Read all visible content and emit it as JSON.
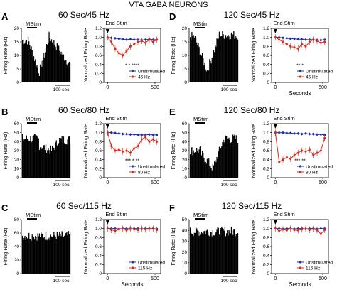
{
  "main_title": "VTA GABA NEURONS",
  "colors": {
    "unstimulated": "#1f2fa8",
    "stimulated": "#d42a1c",
    "hist": "#000000"
  },
  "panels": [
    {
      "letter": "A",
      "title": "60 Sec/45 Hz",
      "mstim": "MStim",
      "hist_ylabel": "Firing Rate (Hz)",
      "hist_yticks": [
        "20",
        "15",
        "10",
        "5",
        "0"
      ],
      "hist_ymax": 20,
      "scalebar": "100 sec"
    },
    {
      "letter": "B",
      "title": "60 Sec/80 Hz",
      "mstim": "MStim",
      "hist_ylabel": "Firing Rate (Hz)",
      "hist_yticks": [
        "60",
        "50",
        "40",
        "30",
        "20",
        "10",
        "0"
      ],
      "hist_ymax": 60,
      "scalebar": "100 sec"
    },
    {
      "letter": "C",
      "title": "60 Sec/115 Hz",
      "mstim": "MStim",
      "hist_ylabel": "Firing Rate (Hz)",
      "hist_yticks": [
        "80",
        "60",
        "40",
        "20",
        "0"
      ],
      "hist_ymax": 80,
      "scalebar": "100 sec"
    },
    {
      "letter": "D",
      "title": "120 Sec/45 Hz",
      "mstim": "MStim",
      "hist_ylabel": "Firing Rate (Hz)",
      "hist_yticks": [
        "20",
        "15",
        "10",
        "5",
        "0"
      ],
      "hist_ymax": 20,
      "scalebar": "100 sec"
    },
    {
      "letter": "E",
      "title": "120 Sec/80 Hz",
      "mstim": "MStim",
      "hist_ylabel": "Firing Rate (Hz)",
      "hist_yticks": [
        "60",
        "50",
        "40",
        "30",
        "20",
        "10",
        "0"
      ],
      "hist_ymax": 60,
      "scalebar": "100 sec"
    },
    {
      "letter": "F",
      "title": "120 Sec/115 Hz",
      "mstim": "MStim",
      "hist_ylabel": "Firing Rate (Hz)",
      "hist_yticks": [
        "50",
        "40",
        "30",
        "20",
        "10",
        "0"
      ],
      "hist_ymax": 50,
      "scalebar": "100 sec"
    }
  ],
  "chart_data": [
    {
      "panel": "A",
      "type": "line",
      "end_stim": "End Stim",
      "ylabel": "Normalized Firing Rate",
      "xlabel": "",
      "ylim": [
        0,
        1.2
      ],
      "yticks": [
        "1.2",
        "1.0",
        "0.8",
        "0.6",
        "0.4",
        "0.2",
        "0"
      ],
      "xlim": [
        -40,
        560
      ],
      "xticks": [
        "0",
        "500"
      ],
      "x": [
        0,
        40,
        80,
        120,
        160,
        200,
        240,
        280,
        320,
        360,
        400,
        440,
        480,
        520
      ],
      "series": [
        {
          "name": "Unstimulated",
          "values": [
            1.0,
            0.99,
            0.98,
            0.97,
            0.96,
            0.95,
            0.96,
            0.95,
            0.95,
            0.94,
            0.95,
            0.96,
            0.95,
            0.95
          ]
        },
        {
          "name": "45 Hz",
          "values": [
            1.0,
            0.9,
            0.75,
            0.65,
            0.6,
            0.7,
            0.8,
            0.85,
            0.9,
            0.92,
            0.88,
            0.95,
            0.9,
            0.95
          ]
        }
      ],
      "sig_marks": "* * ****"
    },
    {
      "panel": "B",
      "type": "line",
      "end_stim": "End Stim",
      "ylabel": "Normalized Firing Rate",
      "xlabel": "",
      "ylim": [
        0,
        1.2
      ],
      "yticks": [
        "1.2",
        "1.0",
        "0.8",
        "0.6",
        "0.4",
        "0.2",
        "0"
      ],
      "xlim": [
        -40,
        560
      ],
      "xticks": [
        "0",
        "500"
      ],
      "x": [
        0,
        40,
        80,
        120,
        160,
        200,
        240,
        280,
        320,
        360,
        400,
        440,
        480,
        520
      ],
      "series": [
        {
          "name": "Unstimulated",
          "values": [
            1.0,
            1.0,
            0.99,
            0.98,
            0.97,
            0.97,
            0.96,
            0.96,
            0.95,
            0.95,
            0.95,
            0.96,
            0.95,
            0.95
          ]
        },
        {
          "name": "80 Hz",
          "values": [
            1.0,
            0.7,
            0.6,
            0.62,
            0.58,
            0.6,
            0.55,
            0.65,
            0.7,
            0.85,
            0.9,
            0.8,
            0.85,
            0.8
          ]
        }
      ],
      "sig_marks": "*** * **"
    },
    {
      "panel": "C",
      "type": "line",
      "end_stim": "End Stim",
      "ylabel": "Normalized Firing Rate",
      "xlabel": "Seconds",
      "ylim": [
        0,
        1.2
      ],
      "yticks": [
        "1.2",
        "1.0",
        "0.8",
        "0.6",
        "0.4",
        "0.2",
        "0"
      ],
      "xlim": [
        -40,
        560
      ],
      "xticks": [
        "0",
        "500"
      ],
      "x": [
        0,
        40,
        80,
        120,
        160,
        200,
        240,
        280,
        320,
        360,
        400,
        440,
        480,
        520
      ],
      "series": [
        {
          "name": "Unstimulated",
          "values": [
            1.0,
            1.0,
            1.0,
            0.99,
            1.0,
            1.0,
            0.99,
            1.0,
            1.0,
            0.99,
            1.0,
            1.0,
            1.0,
            0.99
          ]
        },
        {
          "name": "115 Hz",
          "values": [
            1.0,
            0.97,
            0.95,
            0.98,
            1.0,
            0.96,
            1.0,
            0.98,
            0.97,
            1.0,
            0.98,
            0.99,
            1.0,
            0.97
          ]
        }
      ],
      "sig_marks": ""
    },
    {
      "panel": "D",
      "type": "line",
      "end_stim": "End Stim",
      "ylabel": "Normalized Firing Rate",
      "xlabel": "Seconds",
      "ylim": [
        0,
        1.2
      ],
      "yticks": [
        "1.2",
        "1.0",
        "0.8",
        "0.6",
        "0.4",
        "0.2",
        "0"
      ],
      "xlim": [
        -40,
        560
      ],
      "xticks": [
        "0",
        "500"
      ],
      "x": [
        0,
        40,
        80,
        120,
        160,
        200,
        240,
        280,
        320,
        360,
        400,
        440,
        480,
        520
      ],
      "series": [
        {
          "name": "Unstimulated",
          "values": [
            1.0,
            1.0,
            0.99,
            0.98,
            0.97,
            0.97,
            0.96,
            0.96,
            0.95,
            0.95,
            0.95,
            0.94,
            0.94,
            0.95
          ]
        },
        {
          "name": "45 Hz",
          "values": [
            1.0,
            0.95,
            0.9,
            0.85,
            0.8,
            0.78,
            0.75,
            0.85,
            0.8,
            0.9,
            0.95,
            0.92,
            0.88,
            0.9
          ]
        }
      ],
      "sig_marks": "** *"
    },
    {
      "panel": "E",
      "type": "line",
      "end_stim": "End Stim",
      "ylabel": "Normalized Firing Rate",
      "xlabel": "",
      "ylim": [
        0,
        1.2
      ],
      "yticks": [
        "1.2",
        "1.0",
        "0.8",
        "0.6",
        "0.4",
        "0.2",
        "0"
      ],
      "xlim": [
        -40,
        560
      ],
      "xticks": [
        "0",
        "500"
      ],
      "x": [
        0,
        40,
        80,
        120,
        160,
        200,
        240,
        280,
        320,
        360,
        400,
        440,
        480,
        520
      ],
      "series": [
        {
          "name": "Unstimulated",
          "values": [
            1.0,
            1.0,
            1.0,
            0.99,
            0.99,
            0.98,
            0.98,
            0.97,
            0.98,
            0.97,
            0.97,
            0.96,
            0.96,
            0.95
          ]
        },
        {
          "name": "80 Hz",
          "values": [
            1.0,
            0.35,
            0.4,
            0.45,
            0.42,
            0.5,
            0.55,
            0.6,
            0.58,
            0.62,
            0.5,
            0.55,
            0.6,
            0.88
          ]
        }
      ],
      "sig_marks": "*** **"
    },
    {
      "panel": "F",
      "type": "line",
      "end_stim": "End Stim",
      "ylabel": "Normalized Firing Rate",
      "xlabel": "Seconds",
      "ylim": [
        0,
        1.2
      ],
      "yticks": [
        "1.2",
        "1.0",
        "0.8",
        "0.6",
        "0.4",
        "0.2",
        "0"
      ],
      "xlim": [
        -40,
        560
      ],
      "xticks": [
        "0",
        "500"
      ],
      "x": [
        0,
        40,
        80,
        120,
        160,
        200,
        240,
        280,
        320,
        360,
        400,
        440,
        480,
        520
      ],
      "series": [
        {
          "name": "Unstimulated",
          "values": [
            1.0,
            1.0,
            0.99,
            1.0,
            1.0,
            0.99,
            1.0,
            1.0,
            0.99,
            1.0,
            1.0,
            0.99,
            1.0,
            1.0
          ]
        },
        {
          "name": "115 Hz",
          "values": [
            1.0,
            0.95,
            0.98,
            0.96,
            1.0,
            0.97,
            0.96,
            0.98,
            1.0,
            0.97,
            0.99,
            0.96,
            0.88,
            0.97
          ]
        }
      ],
      "sig_marks": ""
    }
  ]
}
